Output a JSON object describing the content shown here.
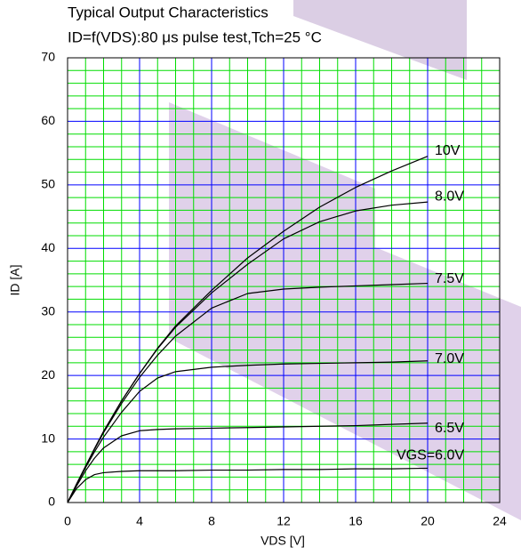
{
  "chart_data": {
    "type": "line",
    "title": "Typical Output Characteristics",
    "subtitle": "ID=f(VDS):80 μs pulse test,Tch=25 °C",
    "x_label": "VDS [V]",
    "y_label": "ID [A]",
    "x": [
      0,
      0.5,
      1,
      1.5,
      2,
      3,
      4,
      5,
      6,
      8,
      10,
      12,
      14,
      16,
      18,
      20
    ],
    "series": [
      {
        "name": "10V",
        "color": "#000000",
        "values": [
          0,
          2.9,
          5.7,
          8.5,
          11.2,
          16,
          20.3,
          24.3,
          27.8,
          33.4,
          38.5,
          42.7,
          46.5,
          49.6,
          52.2,
          54.5
        ]
      },
      {
        "name": "8.0V",
        "color": "#000000",
        "values": [
          0,
          2.9,
          5.7,
          8.5,
          11.2,
          16,
          20.3,
          24.2,
          27.6,
          33,
          37.5,
          41.5,
          44.2,
          45.9,
          46.8,
          47.3
        ]
      },
      {
        "name": "7.5V",
        "color": "#000000",
        "values": [
          0,
          2.9,
          5.7,
          8.4,
          11,
          15.6,
          19.7,
          23.2,
          26.2,
          30.6,
          32.9,
          33.6,
          33.9,
          34.1,
          34.3,
          34.5
        ]
      },
      {
        "name": "7.0V",
        "color": "#000000",
        "values": [
          0,
          2.8,
          5.5,
          8,
          10.3,
          14.2,
          17.5,
          19.6,
          20.6,
          21.3,
          21.6,
          21.8,
          21.9,
          22,
          22.1,
          22.3
        ]
      },
      {
        "name": "6.5V",
        "color": "#000000",
        "values": [
          0,
          2.6,
          5,
          7,
          8.6,
          10.5,
          11.3,
          11.5,
          11.6,
          11.7,
          11.8,
          11.9,
          12,
          12.1,
          12.3,
          12.5
        ]
      },
      {
        "name": "VGS=6.0V",
        "color": "#000000",
        "values": [
          0,
          2.2,
          3.6,
          4.4,
          4.7,
          4.9,
          5,
          5,
          5,
          5.1,
          5.1,
          5.2,
          5.2,
          5.3,
          5.3,
          5.4
        ]
      }
    ],
    "xlim": [
      0,
      24
    ],
    "xticks": [
      0,
      4,
      8,
      12,
      16,
      20,
      24
    ],
    "ylim": [
      0,
      70
    ],
    "yticks": [
      0,
      10,
      20,
      30,
      40,
      50,
      60,
      70
    ],
    "grid": true,
    "grid_color": "#0000ff",
    "minor_grid_color": "#00dd00"
  }
}
